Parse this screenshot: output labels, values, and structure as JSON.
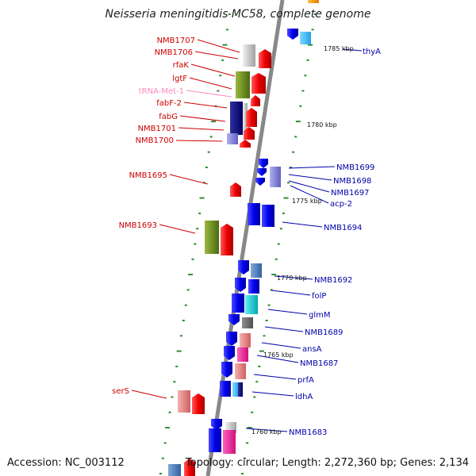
{
  "title": "Neisseria meningitidis MC58, complete genome",
  "footer": {
    "accession": "Accession: NC_003112",
    "topology": "Topology: circular; Length: 2,272,360 bp; Genes: 2,134"
  },
  "colors": {
    "forward_label": "#cc0000",
    "reverse_label": "#0000aa",
    "trna_label": "#ff88bb",
    "backbone": "#888888",
    "tick": "#2e8b2e"
  },
  "ruler": [
    {
      "label": "1785 kbp"
    },
    {
      "label": "1780 kbp"
    },
    {
      "label": "1775 kbp"
    },
    {
      "label": "1770 kbp"
    },
    {
      "label": "1765 kbp"
    },
    {
      "label": "1760 kbp"
    }
  ],
  "left_labels": [
    {
      "text": "NMB1707"
    },
    {
      "text": "NMB1706"
    },
    {
      "text": "rfaK"
    },
    {
      "text": "lgtF"
    },
    {
      "text": "tRNA-Met-1"
    },
    {
      "text": "fabF-2"
    },
    {
      "text": "fabG"
    },
    {
      "text": "NMB1701"
    },
    {
      "text": "NMB1700"
    },
    {
      "text": "NMB1695"
    },
    {
      "text": "NMB1693"
    },
    {
      "text": "serS"
    }
  ],
  "right_labels": [
    {
      "text": "thyA"
    },
    {
      "text": "NMB1699"
    },
    {
      "text": "NMB1698"
    },
    {
      "text": "NMB1697"
    },
    {
      "text": "acp-2"
    },
    {
      "text": "NMB1694"
    },
    {
      "text": "NMB1692"
    },
    {
      "text": "folP"
    },
    {
      "text": "glmM"
    },
    {
      "text": "NMB1689"
    },
    {
      "text": "ansA"
    },
    {
      "text": "NMB1687"
    },
    {
      "text": "prfA"
    },
    {
      "text": "ldhA"
    },
    {
      "text": "NMB1683"
    }
  ]
}
